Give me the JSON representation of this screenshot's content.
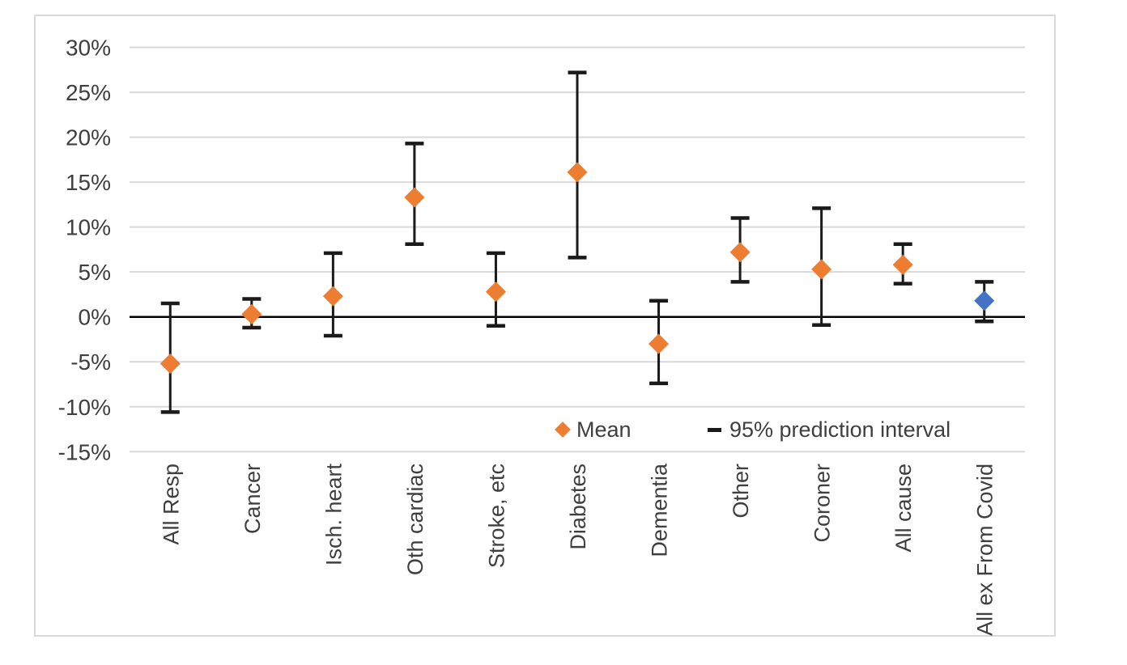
{
  "chart_data": {
    "type": "scatter",
    "title": "",
    "xlabel": "",
    "ylabel": "",
    "categories": [
      "All Resp",
      "Cancer",
      "Isch. heart",
      "Oth cardiac",
      "Stroke, etc",
      "Diabetes",
      "Dementia",
      "Other",
      "Coroner",
      "All cause",
      "All ex From Covid"
    ],
    "series": [
      {
        "name": "Mean",
        "values": [
          -5.2,
          0.3,
          2.3,
          13.3,
          2.8,
          16.1,
          -3.0,
          7.2,
          5.3,
          5.8,
          1.8
        ]
      },
      {
        "name": "95% prediction interval",
        "lower": [
          -10.6,
          -1.2,
          -2.1,
          8.1,
          -1.0,
          6.6,
          -7.4,
          3.9,
          -0.9,
          3.7,
          -0.5
        ],
        "upper": [
          1.5,
          2.0,
          7.1,
          19.3,
          7.1,
          27.2,
          1.8,
          11.0,
          12.1,
          8.1,
          3.9
        ]
      }
    ],
    "y_ticks": [
      30,
      25,
      20,
      15,
      10,
      5,
      0,
      -5,
      -10,
      -15
    ],
    "tick_format": "percent",
    "ylim": [
      -15,
      30
    ],
    "grid": true,
    "legend_position": "inside-bottom-right",
    "legend": {
      "mean_label": "Mean",
      "interval_label": "95% prediction interval"
    },
    "colors": {
      "mean_point": "#ED7D31",
      "last_point": "#4472C4",
      "error_bar": "#1A1A1A",
      "gridline": "#D9D9D9",
      "zero_axis": "#000000",
      "text": "#3F3F3F",
      "frame_border": "#D9D9D9"
    },
    "point_color_overrides": {
      "10": "#4472C4"
    }
  }
}
